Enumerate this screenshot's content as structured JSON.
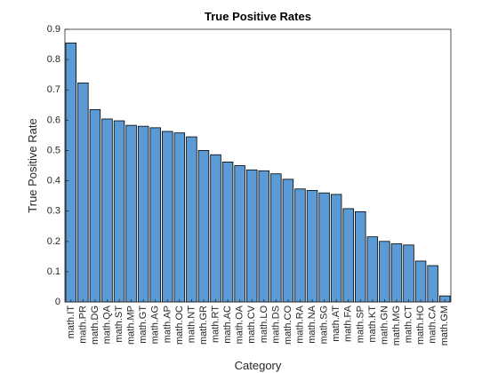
{
  "chart_data": {
    "type": "bar",
    "title": "True Positive Rates",
    "xlabel": "Category",
    "ylabel": "True Positive Rate",
    "ylim": [
      0,
      0.9
    ],
    "yticks": [
      0,
      0.1,
      0.2,
      0.3,
      0.4,
      0.5,
      0.6,
      0.7,
      0.8,
      0.9
    ],
    "ytick_labels": [
      "0",
      "0.1",
      "0.2",
      "0.3",
      "0.4",
      "0.5",
      "0.6",
      "0.7",
      "0.8",
      "0.9"
    ],
    "grid": false,
    "bar_color": "#5b9bd5",
    "edge_color": "#000000",
    "categories": [
      "math.IT",
      "math.PR",
      "math.DG",
      "math.QA",
      "math.ST",
      "math.MP",
      "math.GT",
      "math.AG",
      "math.AP",
      "math.OC",
      "math.NT",
      "math.GR",
      "math.RT",
      "math.AC",
      "math.OA",
      "math.CV",
      "math.LO",
      "math.DS",
      "math.CO",
      "math.RA",
      "math.NA",
      "math.SG",
      "math.AT",
      "math.FA",
      "math.SP",
      "math.KT",
      "math.GN",
      "math.MG",
      "math.CT",
      "math.HO",
      "math.CA",
      "math.GM"
    ],
    "values": [
      0.855,
      0.723,
      0.635,
      0.604,
      0.598,
      0.583,
      0.58,
      0.575,
      0.563,
      0.558,
      0.545,
      0.5,
      0.486,
      0.462,
      0.45,
      0.436,
      0.433,
      0.423,
      0.405,
      0.373,
      0.368,
      0.36,
      0.355,
      0.308,
      0.298,
      0.215,
      0.2,
      0.192,
      0.188,
      0.135,
      0.12,
      0.02
    ]
  }
}
